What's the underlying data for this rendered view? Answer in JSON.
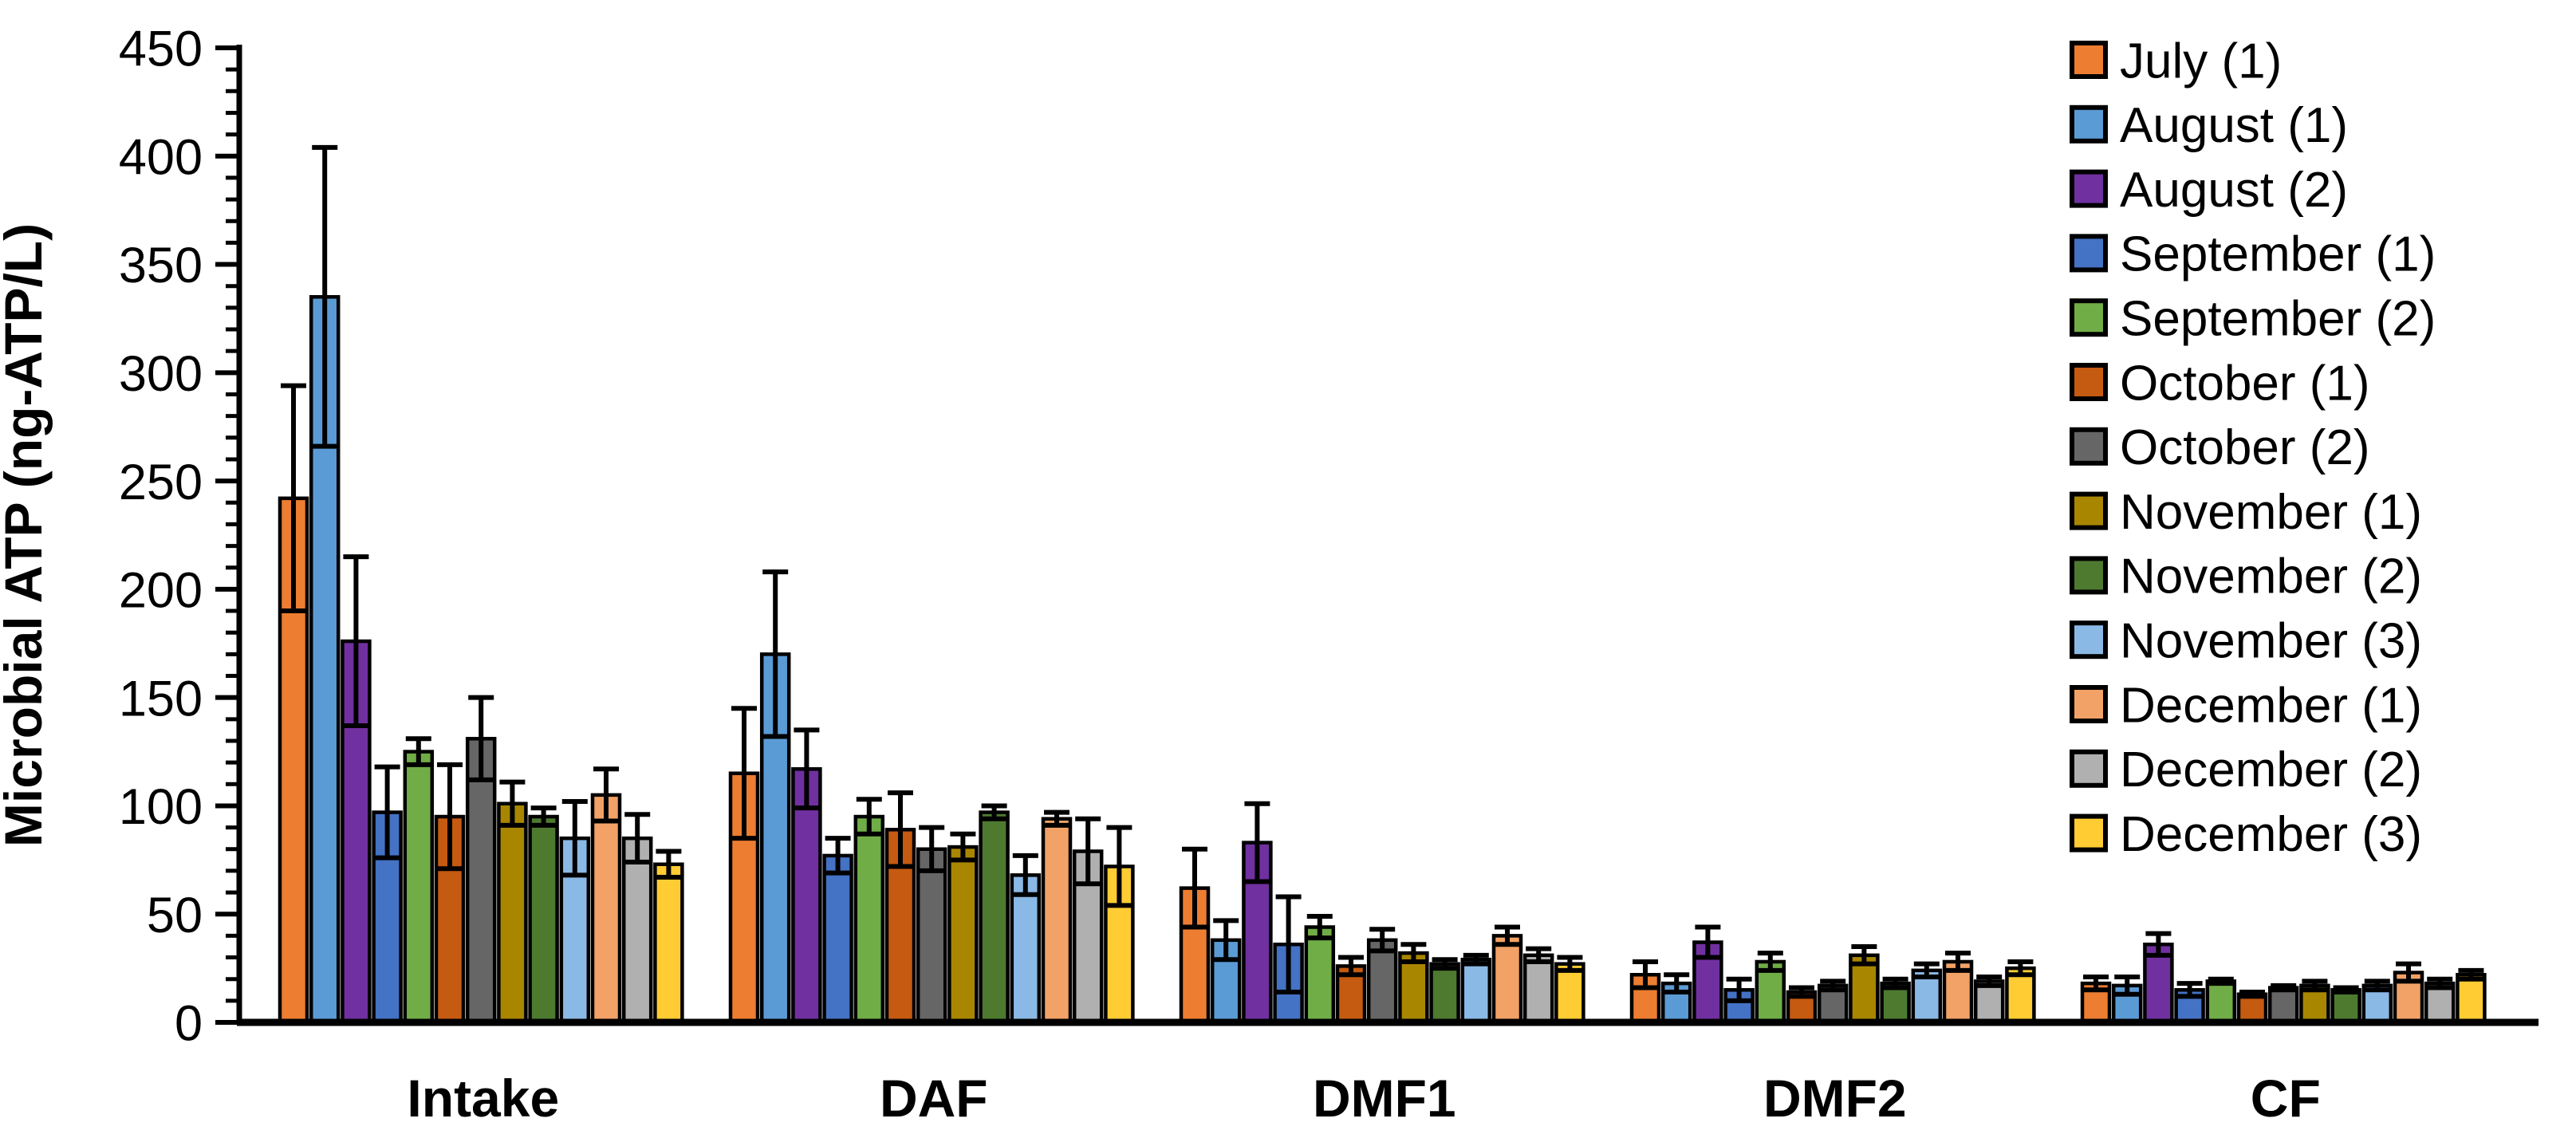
{
  "chart_data": {
    "type": "bar",
    "title": "",
    "xlabel": "",
    "ylabel": "Microbial ATP (ng-ATP/L)",
    "ylim": [
      0,
      450
    ],
    "ytick_step": 50,
    "yminor_step": 10,
    "grid": false,
    "legend_position": "top-right",
    "error_bars": true,
    "categories": [
      "Intake",
      "DAF",
      "DMF1",
      "DMF2",
      "CF"
    ],
    "series": [
      {
        "name": "July (1)",
        "color": "#ED7D31",
        "values": [
          242,
          115,
          62,
          22,
          18
        ],
        "errors": [
          52,
          30,
          18,
          6,
          3
        ]
      },
      {
        "name": "August (1)",
        "color": "#5B9BD5",
        "values": [
          335,
          170,
          38,
          18,
          17
        ],
        "errors": [
          69,
          38,
          9,
          4,
          4
        ]
      },
      {
        "name": "August (2)",
        "color": "#7030A0",
        "values": [
          176,
          117,
          83,
          37,
          36
        ],
        "errors": [
          39,
          18,
          18,
          7,
          5
        ]
      },
      {
        "name": "September (1)",
        "color": "#4472C4",
        "values": [
          97,
          77,
          36,
          15,
          15
        ],
        "errors": [
          21,
          8,
          22,
          5,
          3
        ]
      },
      {
        "name": "September (2)",
        "color": "#70AD47",
        "values": [
          125,
          95,
          44,
          28,
          19
        ],
        "errors": [
          6,
          8,
          5,
          4,
          1
        ]
      },
      {
        "name": "October (1)",
        "color": "#C55A11",
        "values": [
          95,
          89,
          26,
          14,
          13
        ],
        "errors": [
          24,
          17,
          4,
          2,
          1
        ]
      },
      {
        "name": "October (2)",
        "color": "#666666",
        "values": [
          131,
          80,
          38,
          17,
          16
        ],
        "errors": [
          19,
          10,
          5,
          2,
          1
        ]
      },
      {
        "name": "November (1)",
        "color": "#A98600",
        "values": [
          101,
          81,
          32,
          31,
          17
        ],
        "errors": [
          10,
          6,
          4,
          4,
          2
        ]
      },
      {
        "name": "November (2)",
        "color": "#4E7A30",
        "values": [
          95,
          97,
          27,
          18,
          15
        ],
        "errors": [
          4,
          3,
          2,
          2,
          1
        ]
      },
      {
        "name": "November (3)",
        "color": "#8BB9E6",
        "values": [
          85,
          68,
          29,
          24,
          17
        ],
        "errors": [
          17,
          9,
          2,
          3,
          2
        ]
      },
      {
        "name": "December (1)",
        "color": "#F2A266",
        "values": [
          105,
          94,
          40,
          28,
          23
        ],
        "errors": [
          12,
          3,
          4,
          4,
          4
        ]
      },
      {
        "name": "December (2)",
        "color": "#B0B0B0",
        "values": [
          85,
          79,
          31,
          19,
          18
        ],
        "errors": [
          11,
          15,
          3,
          2,
          2
        ]
      },
      {
        "name": "December (3)",
        "color": "#FFCC33",
        "values": [
          73,
          72,
          27,
          25,
          22
        ],
        "errors": [
          6,
          18,
          3,
          3,
          2
        ]
      }
    ],
    "ytick_labels": [
      "0",
      "50",
      "100",
      "150",
      "200",
      "250",
      "300",
      "350",
      "400",
      "450"
    ],
    "axis_color": "#000000",
    "bar_outline_color": "#000000",
    "error_bar_color": "#000000"
  }
}
